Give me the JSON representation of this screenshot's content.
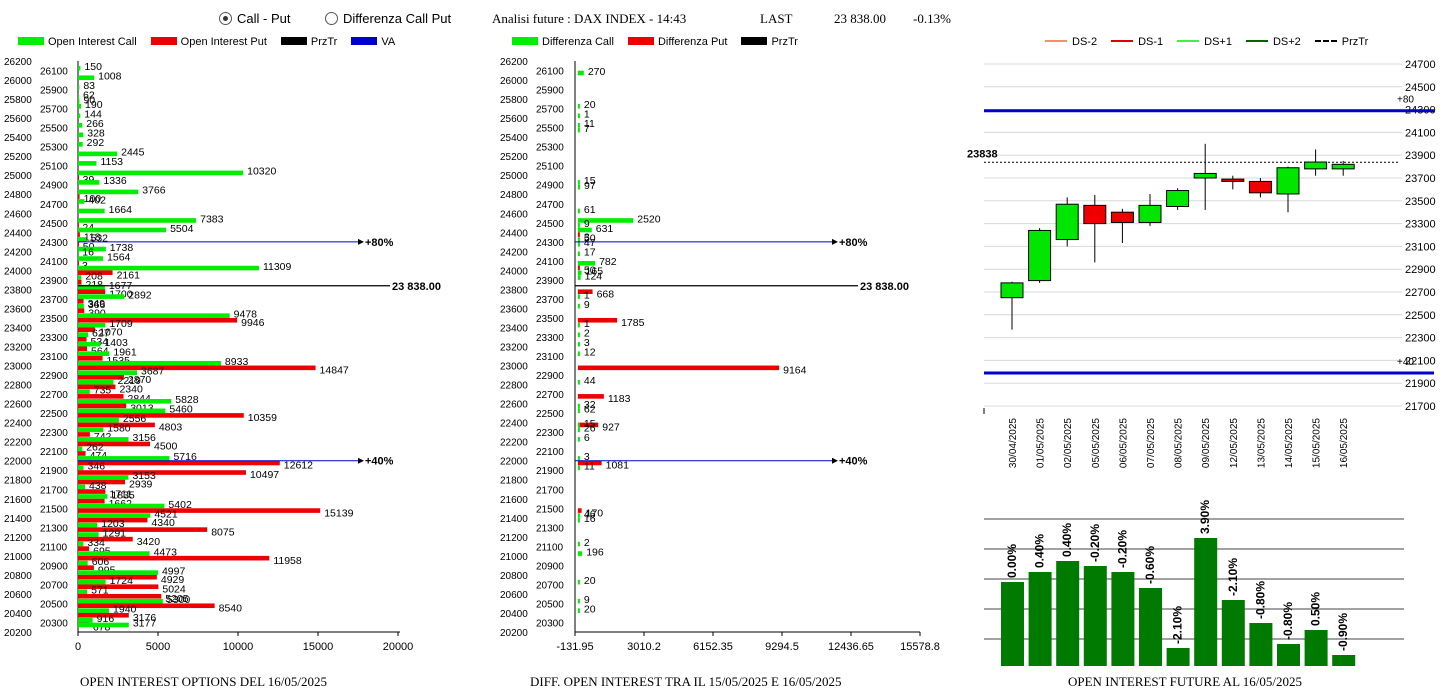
{
  "header": {
    "radio1": "Call - Put",
    "radio2": "Differenza Call Put",
    "title": "Analisi future : DAX INDEX - 14:43",
    "last_label": "LAST",
    "last_value": "23 838.00",
    "change": "-0.13%"
  },
  "colors": {
    "call": "#00ee00",
    "put": "#ee0000",
    "przTr": "#000000",
    "va": "#0000cc",
    "green_candle": "#00e600",
    "red_candle": "#ee0000",
    "bar_green": "#007a00"
  },
  "legend1": [
    {
      "label": "Open Interest Call",
      "color": "#00ee00"
    },
    {
      "label": "Open Interest Put",
      "color": "#ee0000"
    },
    {
      "label": "PrzTr",
      "color": "#000000"
    },
    {
      "label": "VA",
      "color": "#0000cc"
    }
  ],
  "legend2": [
    {
      "label": "Differenza Call",
      "color": "#00ee00"
    },
    {
      "label": "Differenza Put",
      "color": "#ee0000"
    },
    {
      "label": "PrzTr",
      "color": "#000000"
    }
  ],
  "legend3": [
    {
      "label": "DS-2",
      "color": "#f09070",
      "dash": false
    },
    {
      "label": "DS-1",
      "color": "#dd0000",
      "dash": false
    },
    {
      "label": "DS+1",
      "color": "#44ee44",
      "dash": false
    },
    {
      "label": "DS+2",
      "color": "#006600",
      "dash": false
    },
    {
      "label": "PrzTr",
      "color": "#000000",
      "dash": true
    }
  ],
  "captions": {
    "c1": "OPEN INTEREST OPTIONS DEL 16/05/2025",
    "c2": "DIFF. OPEN INTEREST TRA IL 15/05/2025 E 16/05/2025",
    "c3": "OPEN INTEREST FUTURE AL 16/05/2025"
  },
  "chart_data": [
    {
      "type": "bar",
      "orientation": "horizontal",
      "y_axis_labels": [
        26200,
        26000,
        25800,
        25600,
        25400,
        25200,
        25000,
        24800,
        24600,
        24400,
        24200,
        24000,
        23800,
        23600,
        23400,
        23200,
        23000,
        22800,
        22600,
        22400,
        22200,
        22000,
        21800,
        21600,
        21400,
        21200,
        21000,
        20800,
        20600,
        20400,
        20200
      ],
      "strike_labels": [
        26100,
        25900,
        25700,
        25500,
        25300,
        25100,
        24900,
        24700,
        24500,
        24300,
        24100,
        23900,
        23700,
        23500,
        23300,
        23100,
        22900,
        22700,
        22500,
        22300,
        22100,
        21900,
        21700,
        21500,
        21300,
        21100,
        20900,
        20700,
        20500,
        20300
      ],
      "xlim": [
        0,
        20000
      ],
      "xticks": [
        0,
        5000,
        10000,
        15000,
        20000
      ],
      "price_label": "23 838.00",
      "price_level": 23838,
      "va_lines": [
        {
          "level": 24300,
          "label": "+80%",
          "end": 17500
        },
        {
          "level": 22000,
          "label": "+40%",
          "end": 17500
        }
      ],
      "bars": [
        {
          "y": 26100,
          "call": 150,
          "put": 0
        },
        {
          "y": 26000,
          "call": 1008,
          "put": 0
        },
        {
          "y": 25900,
          "call": 83,
          "put": 0
        },
        {
          "y": 25800,
          "call": 62,
          "put": 0
        },
        {
          "y": 25750,
          "call": 90,
          "put": 0
        },
        {
          "y": 25700,
          "call": 190,
          "put": 0
        },
        {
          "y": 25600,
          "call": 144,
          "put": 0
        },
        {
          "y": 25500,
          "call": 266,
          "put": 0
        },
        {
          "y": 25400,
          "call": 328,
          "put": 0
        },
        {
          "y": 25300,
          "call": 292,
          "put": 0
        },
        {
          "y": 25200,
          "call": 2445,
          "put": 0
        },
        {
          "y": 25100,
          "call": 1153,
          "put": 0
        },
        {
          "y": 25000,
          "call": 10320,
          "put": 39
        },
        {
          "y": 24900,
          "call": 1336,
          "put": 0
        },
        {
          "y": 24800,
          "call": 3766,
          "put": 100
        },
        {
          "y": 24700,
          "call": 402,
          "put": 0
        },
        {
          "y": 24600,
          "call": 1664,
          "put": 0
        },
        {
          "y": 24500,
          "call": 7383,
          "put": 24
        },
        {
          "y": 24400,
          "call": 5504,
          "put": 118
        },
        {
          "y": 24300,
          "call": 532,
          "put": 50
        },
        {
          "y": 24200,
          "call": 1738,
          "put": 0
        },
        {
          "y": 24150,
          "call": 16,
          "put": 0
        },
        {
          "y": 24100,
          "call": 1564,
          "put": 3
        },
        {
          "y": 24000,
          "call": 11309,
          "put": 2161
        },
        {
          "y": 23900,
          "call": 208,
          "put": 218
        },
        {
          "y": 23800,
          "call": 1677,
          "put": 1700
        },
        {
          "y": 23700,
          "call": 2892,
          "put": 349
        },
        {
          "y": 23600,
          "call": 366,
          "put": 390
        },
        {
          "y": 23500,
          "call": 9478,
          "put": 9946
        },
        {
          "y": 23400,
          "call": 1709,
          "put": 1070
        },
        {
          "y": 23300,
          "call": 627,
          "put": 534
        },
        {
          "y": 23200,
          "call": 1403,
          "put": 564
        },
        {
          "y": 23100,
          "call": 1961,
          "put": 1535
        },
        {
          "y": 23000,
          "call": 8933,
          "put": 14847
        },
        {
          "y": 22900,
          "call": 3687,
          "put": 2870
        },
        {
          "y": 22800,
          "call": 2219,
          "put": 2340
        },
        {
          "y": 22700,
          "call": 735,
          "put": 2844
        },
        {
          "y": 22600,
          "call": 5828,
          "put": 3013
        },
        {
          "y": 22500,
          "call": 5460,
          "put": 10359
        },
        {
          "y": 22400,
          "call": 2556,
          "put": 4803
        },
        {
          "y": 22300,
          "call": 1580,
          "put": 742
        },
        {
          "y": 22200,
          "call": 3156,
          "put": 4500
        },
        {
          "y": 22100,
          "call": 262,
          "put": 474
        },
        {
          "y": 22000,
          "call": 5716,
          "put": 12612
        },
        {
          "y": 21900,
          "call": 346,
          "put": 10497
        },
        {
          "y": 21800,
          "call": 3153,
          "put": 2939
        },
        {
          "y": 21700,
          "call": 438,
          "put": 1711
        },
        {
          "y": 21600,
          "call": 1835,
          "put": 1662
        },
        {
          "y": 21500,
          "call": 5402,
          "put": 15139
        },
        {
          "y": 21400,
          "call": 4521,
          "put": 4340
        },
        {
          "y": 21300,
          "call": 1203,
          "put": 8075
        },
        {
          "y": 21200,
          "call": 1291,
          "put": 3420
        },
        {
          "y": 21100,
          "call": 334,
          "put": 695
        },
        {
          "y": 21000,
          "call": 4473,
          "put": 11958
        },
        {
          "y": 20900,
          "call": 606,
          "put": 995
        },
        {
          "y": 20800,
          "call": 4997,
          "put": 4929
        },
        {
          "y": 20700,
          "call": 1724,
          "put": 5024
        },
        {
          "y": 20600,
          "call": 571,
          "put": 5205
        },
        {
          "y": 20500,
          "call": 5300,
          "put": 8540
        },
        {
          "y": 20400,
          "call": 1940,
          "put": 3176
        },
        {
          "y": 20300,
          "call": 916,
          "put": 678
        },
        {
          "y": 20250,
          "call": 3177,
          "put": 0
        }
      ]
    },
    {
      "type": "bar",
      "orientation": "horizontal",
      "xlim": [
        -131.95,
        15578.8
      ],
      "xticks": [
        "-131.95",
        "3010.2",
        "6152.35",
        "9294.5",
        "12436.65",
        "15578.8"
      ],
      "price_label": "23 838.00",
      "va_lines": [
        {
          "level": 24300,
          "label": "+80%"
        },
        {
          "level": 22000,
          "label": "+40%"
        }
      ],
      "bars": [
        {
          "y": 26050,
          "call": 270,
          "put": 0
        },
        {
          "y": 25700,
          "call": 20,
          "put": 0
        },
        {
          "y": 25600,
          "call": 1,
          "put": 0
        },
        {
          "y": 25500,
          "call": 11,
          "put": 0
        },
        {
          "y": 25450,
          "call": 7,
          "put": 0
        },
        {
          "y": 24900,
          "call": 15,
          "put": 0
        },
        {
          "y": 24850,
          "call": 97,
          "put": 0
        },
        {
          "y": 24600,
          "call": 61,
          "put": 0
        },
        {
          "y": 24500,
          "call": 2520,
          "put": 0
        },
        {
          "y": 24450,
          "call": 9,
          "put": 0
        },
        {
          "y": 24400,
          "call": 631,
          "put": 3
        },
        {
          "y": 24300,
          "call": 50,
          "put": 0
        },
        {
          "y": 24250,
          "call": 47,
          "put": 0
        },
        {
          "y": 24150,
          "call": 17,
          "put": 0
        },
        {
          "y": 24050,
          "call": 782,
          "put": 50
        },
        {
          "y": 23950,
          "call": 165,
          "put": 0
        },
        {
          "y": 23900,
          "call": 124,
          "put": 0
        },
        {
          "y": 23800,
          "call": 0,
          "put": 668
        },
        {
          "y": 23700,
          "call": 1,
          "put": 0
        },
        {
          "y": 23600,
          "call": 9,
          "put": 0
        },
        {
          "y": 23500,
          "call": 0,
          "put": 1785
        },
        {
          "y": 23400,
          "call": 1,
          "put": 0
        },
        {
          "y": 23300,
          "call": 2,
          "put": 0
        },
        {
          "y": 23200,
          "call": 3,
          "put": 0
        },
        {
          "y": 23100,
          "call": 12,
          "put": 0
        },
        {
          "y": 23000,
          "call": 0,
          "put": 9164
        },
        {
          "y": 22800,
          "call": 44,
          "put": 0
        },
        {
          "y": 22700,
          "call": 0,
          "put": 1183
        },
        {
          "y": 22550,
          "call": 32,
          "put": 0
        },
        {
          "y": 22500,
          "call": 62,
          "put": 0
        },
        {
          "y": 22400,
          "call": 0,
          "put": 927
        },
        {
          "y": 22350,
          "call": 15,
          "put": 0
        },
        {
          "y": 22300,
          "call": 26,
          "put": 0
        },
        {
          "y": 22200,
          "call": 6,
          "put": 0
        },
        {
          "y": 22000,
          "call": 3,
          "put": 1081
        },
        {
          "y": 21900,
          "call": 11,
          "put": 0
        },
        {
          "y": 21500,
          "call": 0,
          "put": 170
        },
        {
          "y": 21400,
          "call": 46,
          "put": 0
        },
        {
          "y": 21350,
          "call": 16,
          "put": 0
        },
        {
          "y": 21100,
          "call": 2,
          "put": 0
        },
        {
          "y": 21000,
          "call": 196,
          "put": 0
        },
        {
          "y": 20700,
          "call": 20,
          "put": 0
        },
        {
          "y": 20500,
          "call": 9,
          "put": 0
        },
        {
          "y": 20400,
          "call": 20,
          "put": 0
        }
      ]
    },
    {
      "type": "candlestick",
      "ylim": [
        21700,
        24700
      ],
      "yticks": [
        24700,
        24500,
        24300,
        24100,
        23900,
        23700,
        23500,
        23300,
        23100,
        22900,
        22700,
        22500,
        22300,
        22100,
        21900,
        21700
      ],
      "price_label": "23838",
      "price_level": 23838,
      "blue_lines": [
        {
          "level": 24290,
          "label": "+80"
        },
        {
          "level": 21990,
          "label": "+40"
        }
      ],
      "candles": [
        {
          "date": "30/04/2025",
          "open": 22650,
          "close": 22780,
          "high": 22790,
          "low": 22370
        },
        {
          "date": "01/05/2025",
          "open": 22800,
          "close": 23240,
          "high": 23260,
          "low": 22780
        },
        {
          "date": "02/05/2025",
          "open": 23160,
          "close": 23470,
          "high": 23530,
          "low": 23100
        },
        {
          "date": "05/05/2025",
          "open": 23460,
          "close": 23300,
          "high": 23550,
          "low": 22960
        },
        {
          "date": "06/05/2025",
          "open": 23400,
          "close": 23310,
          "high": 23430,
          "low": 23130
        },
        {
          "date": "07/05/2025",
          "open": 23310,
          "close": 23460,
          "high": 23560,
          "low": 23280
        },
        {
          "date": "08/05/2025",
          "open": 23450,
          "close": 23590,
          "high": 23610,
          "low": 23420
        },
        {
          "date": "09/05/2025",
          "open": 23700,
          "close": 23740,
          "high": 24000,
          "low": 23420
        },
        {
          "date": "12/05/2025",
          "open": 23690,
          "close": 23670,
          "high": 23720,
          "low": 23600
        },
        {
          "date": "13/05/2025",
          "open": 23670,
          "close": 23570,
          "high": 23700,
          "low": 23530
        },
        {
          "date": "14/05/2025",
          "open": 23560,
          "close": 23790,
          "high": 23800,
          "low": 23400
        },
        {
          "date": "15/05/2025",
          "open": 23780,
          "close": 23840,
          "high": 23950,
          "low": 23720
        },
        {
          "date": "16/05/2025",
          "open": 23780,
          "close": 23820,
          "high": 23850,
          "low": 23720
        }
      ]
    },
    {
      "type": "bar",
      "categories": [
        "30/04/2025",
        "01/05/2025",
        "02/05/2025",
        "05/05/2025",
        "06/05/2025",
        "07/05/2025",
        "08/05/2025",
        "09/05/2025",
        "12/05/2025",
        "13/05/2025",
        "14/05/2025",
        "15/05/2025",
        "16/05/2025"
      ],
      "values": [
        84,
        94,
        105,
        100,
        94,
        78,
        18,
        128,
        66,
        43,
        22,
        36,
        11
      ],
      "labels": [
        "0.00%",
        "0.40%",
        "0.40%",
        "-0.20%",
        "-0.20%",
        "-0.60%",
        "-2.10%",
        "3.90%",
        "-2.10%",
        "-0.80%",
        "-0.80%",
        "0.50%",
        "-0.90%"
      ]
    }
  ]
}
